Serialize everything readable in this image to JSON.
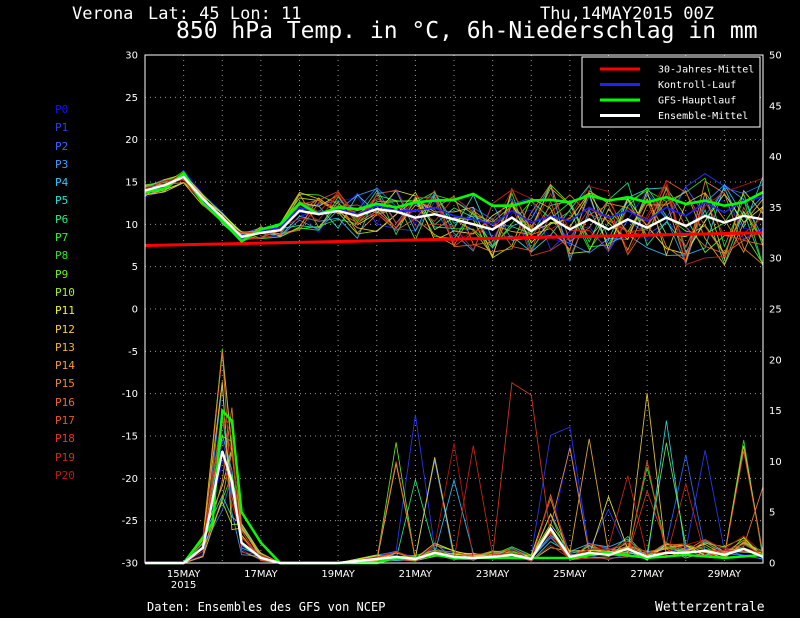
{
  "header": {
    "location": "Verona",
    "coords": "Lat: 45 Lon: 11",
    "date": "Thu,14MAY2015 00Z"
  },
  "footer": {
    "source": "Daten: Ensembles des GFS von NCEP",
    "brand": "Wetterzentrale"
  },
  "members": [
    "P0",
    "P1",
    "P2",
    "P3",
    "P4",
    "P5",
    "P6",
    "P7",
    "P8",
    "P9",
    "P10",
    "P11",
    "P12",
    "P13",
    "P14",
    "P15",
    "P16",
    "P17",
    "P18",
    "P19",
    "P20"
  ],
  "member_colors": [
    "#1010ff",
    "#2a3cff",
    "#2f6bff",
    "#3c9cff",
    "#34c2ff",
    "#2ae0d8",
    "#22ee88",
    "#22ff22",
    "#2ee322",
    "#6ef022",
    "#a8f020",
    "#f2f230",
    "#f2d430",
    "#f2b42c",
    "#f29c2c",
    "#f2842a",
    "#ef6b28",
    "#ec5424",
    "#e43a1e",
    "#d62818",
    "#c01812"
  ],
  "colors": {
    "climate": "#ff0000",
    "control": "#2020ff",
    "gfs": "#00ff00",
    "mean": "#ffffff",
    "grid": "#9a9a9a"
  },
  "chart_data": {
    "type": "line",
    "title": "850 hPa Temp. in °C, 6h-Niederschlag in mm",
    "x_tick_labels": [
      "15MAY",
      "17MAY",
      "19MAY",
      "21MAY",
      "23MAY",
      "25MAY",
      "27MAY",
      "29MAY"
    ],
    "x_first_year": "2015",
    "x_range_days": [
      14,
      30
    ],
    "y_left_range": [
      -30,
      30
    ],
    "y_left_ticks": [
      "30",
      "25",
      "20",
      "15",
      "10",
      "5",
      "0",
      "-5",
      "-10",
      "-15",
      "-20",
      "-25",
      "-30"
    ],
    "y_right_range": [
      0,
      50
    ],
    "y_right_ticks": [
      "50",
      "45",
      "40",
      "35",
      "30",
      "25",
      "20",
      "15",
      "10",
      "5",
      "0"
    ],
    "grid": true,
    "legend_position": "top-right",
    "legend": [
      {
        "label": "30-Jahres-Mittel",
        "color": "#ff0000"
      },
      {
        "label": "Kontroll-Lauf",
        "color": "#2020ff"
      },
      {
        "label": "GFS-Hauptlauf",
        "color": "#00ff00"
      },
      {
        "label": "Ensemble-Mittel",
        "color": "#ffffff"
      }
    ],
    "temp_climate": {
      "x": [
        14,
        30
      ],
      "y": [
        7.5,
        9.0
      ]
    },
    "temp_mean": {
      "x": [
        14,
        14.5,
        15,
        15.5,
        16,
        16.5,
        17,
        17.5,
        18,
        18.5,
        19,
        19.5,
        20,
        20.5,
        21,
        21.5,
        22,
        22.5,
        23,
        23.5,
        24,
        24.5,
        25,
        25.5,
        26,
        26.5,
        27,
        27.5,
        28,
        28.5,
        29,
        29.5,
        30
      ],
      "y": [
        14,
        14.6,
        15.6,
        13.0,
        10.8,
        8.5,
        9.0,
        9.3,
        11.6,
        11.2,
        11.6,
        11.0,
        11.8,
        11.5,
        10.8,
        11.2,
        10.6,
        10.0,
        9.4,
        10.8,
        9.2,
        10.8,
        9.4,
        10.6,
        9.4,
        10.6,
        9.6,
        10.8,
        9.8,
        11.0,
        10.2,
        11.0,
        10.6
      ]
    },
    "temp_gfs": {
      "x": [
        14,
        14.5,
        15,
        15.5,
        16,
        16.5,
        17,
        17.5,
        18,
        18.5,
        19,
        19.5,
        20,
        20.5,
        21,
        21.5,
        22,
        22.5,
        23,
        23.5,
        24,
        24.5,
        25,
        25.5,
        26,
        26.5,
        27,
        27.5,
        28,
        28.5,
        29,
        29.5,
        30
      ],
      "y": [
        13.8,
        14.2,
        16.0,
        12.5,
        10.4,
        8.0,
        9.4,
        10.0,
        12.5,
        11.2,
        12.0,
        11.8,
        12.4,
        12.0,
        12.6,
        12.8,
        12.9,
        13.6,
        12.2,
        12.2,
        12.8,
        12.9,
        12.6,
        13.4,
        12.8,
        13.2,
        12.6,
        13.2,
        12.4,
        12.8,
        12.2,
        12.6,
        13.8
      ]
    },
    "temp_control": {
      "x": [
        14,
        14.5,
        15,
        15.5,
        16,
        16.5,
        17,
        17.5,
        18,
        18.5,
        19,
        19.5,
        20,
        20.5,
        21,
        21.5,
        22,
        22.5,
        23,
        23.5,
        24,
        24.5,
        25,
        25.5,
        26,
        26.5,
        27,
        27.5,
        28,
        28.5,
        29,
        29.5,
        30
      ],
      "y": [
        13.9,
        14.3,
        15.8,
        12.8,
        10.6,
        8.2,
        9.2,
        9.6,
        12.0,
        11.4,
        11.8,
        11.2,
        12.2,
        11.6,
        11.6,
        12.0,
        11.0,
        10.6,
        10.0,
        11.6,
        10.2,
        11.0,
        10.4,
        12.0,
        10.8,
        11.6,
        10.4,
        12.0,
        11.0,
        12.6,
        11.4,
        12.8,
        13.2
      ]
    },
    "precip_gfs": {
      "x": [
        14,
        14.5,
        15,
        15.5,
        15.75,
        16,
        16.25,
        16.5,
        17,
        17.5,
        18,
        19,
        20,
        20.5,
        21,
        21.5,
        22,
        23,
        24,
        25,
        26,
        27,
        28,
        29,
        30
      ],
      "y": [
        0,
        0,
        0,
        2.5,
        4.0,
        15.0,
        14.0,
        5.0,
        2.0,
        0,
        0,
        0,
        0,
        0.5,
        0.5,
        0.8,
        0.5,
        0.5,
        0.5,
        0.5,
        1.0,
        0.5,
        0.8,
        0.5,
        0.8
      ]
    },
    "precip_mean": {
      "x": [
        14,
        14.5,
        15,
        15.5,
        16,
        16.25,
        16.5,
        17,
        17.5,
        18,
        19,
        20,
        20.5,
        21,
        21.5,
        22,
        22.5,
        23,
        23.5,
        24,
        24.5,
        25,
        25.5,
        26,
        26.5,
        27,
        27.5,
        28,
        28.5,
        29,
        29.5,
        30
      ],
      "y": [
        0,
        0,
        0,
        1.5,
        11.0,
        8.0,
        2.0,
        0.5,
        0,
        0,
        0,
        0.4,
        0.6,
        0.4,
        1.0,
        0.6,
        0.5,
        0.6,
        0.8,
        0.4,
        3.4,
        0.6,
        1.0,
        0.8,
        1.4,
        0.6,
        1.0,
        1.0,
        1.2,
        0.8,
        1.4,
        0.6
      ]
    }
  }
}
